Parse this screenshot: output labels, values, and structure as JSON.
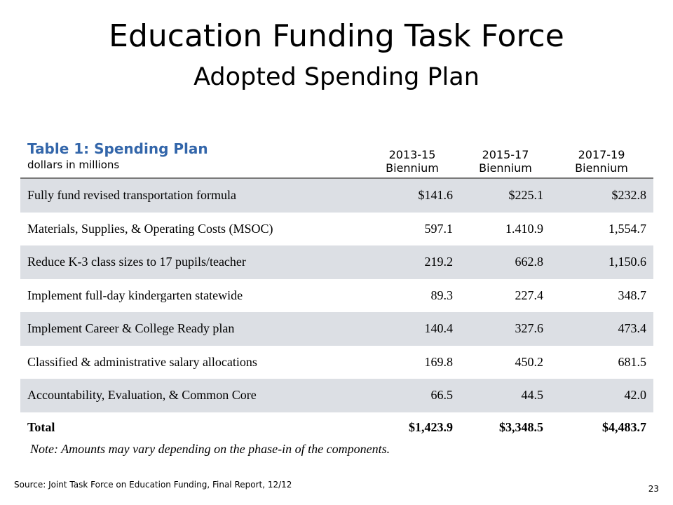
{
  "slide": {
    "title": "Education Funding Task Force",
    "subtitle": "Adopted Spending Plan"
  },
  "table": {
    "heading": "Table 1: Spending Plan",
    "unit": "dollars in millions",
    "columns": [
      {
        "line1": "2013-15",
        "line2": "Biennium"
      },
      {
        "line1": "2015-17",
        "line2": "Biennium"
      },
      {
        "line1": "2017-19",
        "line2": "Biennium"
      }
    ],
    "rows": [
      {
        "label": "Fully fund revised transportation formula",
        "v1": "$141.6",
        "v2": "$225.1",
        "v3": "$232.8"
      },
      {
        "label": "Materials, Supplies, & Operating Costs (MSOC)",
        "v1": "597.1",
        "v2": "1.410.9",
        "v3": "1,554.7"
      },
      {
        "label": "Reduce K-3 class sizes to 17 pupils/teacher",
        "v1": "219.2",
        "v2": "662.8",
        "v3": "1,150.6"
      },
      {
        "label": "Implement full-day kindergarten statewide",
        "v1": "89.3",
        "v2": "227.4",
        "v3": "348.7"
      },
      {
        "label": "Implement Career & College Ready plan",
        "v1": "140.4",
        "v2": "327.6",
        "v3": "473.4"
      },
      {
        "label": "Classified & administrative salary allocations",
        "v1": "169.8",
        "v2": "450.2",
        "v3": "681.5"
      },
      {
        "label": "Accountability, Evaluation, & Common Core",
        "v1": "66.5",
        "v2": "44.5",
        "v3": "42.0"
      }
    ],
    "total": {
      "label": "Total",
      "v1": "$1,423.9",
      "v2": "$3,348.5",
      "v3": "$4,483.7"
    },
    "note": "Note: Amounts may vary depending on the phase-in of the components."
  },
  "footer": {
    "source": "Source: Joint Task Force on Education Funding, Final Report, 12/12",
    "page_number": "23"
  }
}
